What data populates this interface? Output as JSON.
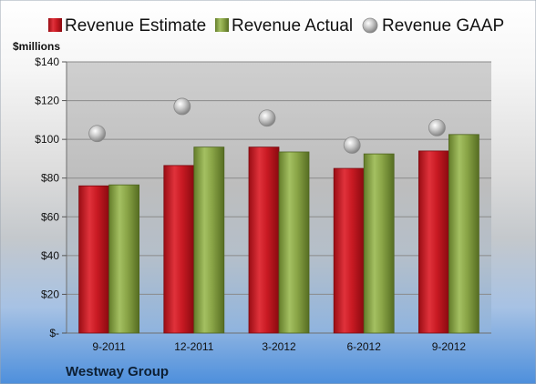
{
  "chart_data": {
    "type": "bar",
    "unit_label": "$millions",
    "company": "Westway Group",
    "categories": [
      "9-2011",
      "12-2011",
      "3-2012",
      "6-2012",
      "9-2012"
    ],
    "series": [
      {
        "name": "Revenue Estimate",
        "type": "bar",
        "color": "#c0121c",
        "values": [
          76,
          86.5,
          96,
          85,
          94
        ]
      },
      {
        "name": "Revenue Actual",
        "type": "bar",
        "color": "#7f9a3c",
        "values": [
          76.5,
          96,
          93.5,
          92.5,
          102.5
        ]
      },
      {
        "name": "Revenue GAAP",
        "type": "marker",
        "color": "#a8a8a8",
        "values": [
          103,
          117,
          111,
          97,
          106
        ]
      }
    ],
    "ylim": [
      0,
      140
    ],
    "yticks": [
      0,
      20,
      40,
      60,
      80,
      100,
      120,
      140
    ],
    "ytick_labels": [
      "$-",
      "$20",
      "$40",
      "$60",
      "$80",
      "$100",
      "$120",
      "$140"
    ],
    "grid": true,
    "legend_position": "top"
  }
}
